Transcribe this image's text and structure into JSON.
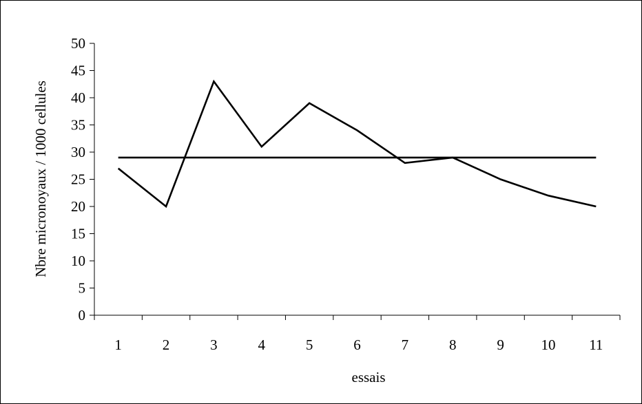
{
  "chart_data": {
    "type": "line",
    "title": "",
    "xlabel": "essais",
    "ylabel": "Nbre micronoyaux / 1000 cellules",
    "categories": [
      "1",
      "2",
      "3",
      "4",
      "5",
      "6",
      "7",
      "8",
      "9",
      "10",
      "11"
    ],
    "yticks": [
      "0",
      "5",
      "10",
      "15",
      "20",
      "25",
      "30",
      "35",
      "40",
      "45",
      "50"
    ],
    "ylim": [
      0,
      50
    ],
    "grid": false,
    "legend": "none",
    "series": [
      {
        "values": [
          27,
          20,
          43,
          31,
          39,
          34,
          28,
          29,
          25,
          22,
          20
        ],
        "color": "#000000"
      },
      {
        "values": [
          29,
          29,
          29,
          29,
          29,
          29,
          29,
          29,
          29,
          29,
          29
        ],
        "color": "#000000"
      }
    ]
  }
}
